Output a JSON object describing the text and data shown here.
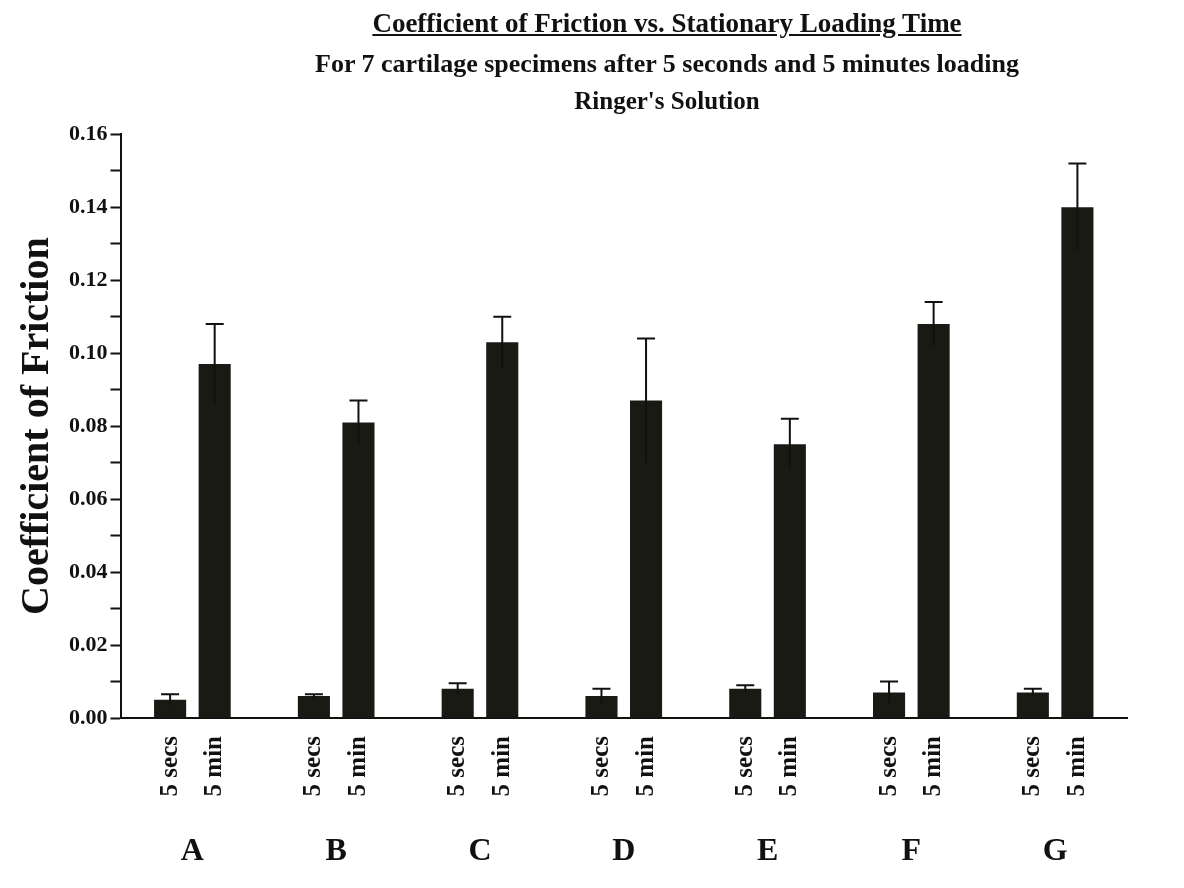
{
  "chart_data": {
    "type": "bar",
    "title": "Coefficient of Friction vs. Stationary Loading Time",
    "subtitle": "For 7 cartilage specimens after 5 seconds and 5 minutes loading",
    "annotations": [
      "Ringer's Solution"
    ],
    "ylabel": "Coefficient of Friction",
    "categories": [
      "A",
      "B",
      "C",
      "D",
      "E",
      "F",
      "G"
    ],
    "series": [
      {
        "name": "5 secs",
        "color": "#1a1a14",
        "values": [
          0.005,
          0.006,
          0.008,
          0.006,
          0.008,
          0.007,
          0.007
        ],
        "errors": [
          0.0015,
          0.0005,
          0.0015,
          0.002,
          0.001,
          0.003,
          0.001
        ]
      },
      {
        "name": "5 min",
        "color": "#1a1a14",
        "values": [
          0.097,
          0.081,
          0.103,
          0.087,
          0.075,
          0.108,
          0.14
        ],
        "errors": [
          0.011,
          0.006,
          0.007,
          0.017,
          0.007,
          0.006,
          0.012
        ]
      }
    ],
    "ylim": [
      0,
      0.16
    ],
    "yticks": [
      {
        "value": 0,
        "label": "0.00"
      },
      {
        "value": 0.01,
        "label": null
      },
      {
        "value": 0.02,
        "label": "0.02"
      },
      {
        "value": 0.03,
        "label": null
      },
      {
        "value": 0.04,
        "label": "0.04"
      },
      {
        "value": 0.05,
        "label": null
      },
      {
        "value": 0.06,
        "label": "0.06"
      },
      {
        "value": 0.07,
        "label": null
      },
      {
        "value": 0.08,
        "label": "0.08"
      },
      {
        "value": 0.09,
        "label": null
      },
      {
        "value": 0.1,
        "label": "0.10"
      },
      {
        "value": 0.11,
        "label": null
      },
      {
        "value": 0.12,
        "label": "0.12"
      },
      {
        "value": 0.13,
        "label": null
      },
      {
        "value": 0.14,
        "label": "0.14"
      },
      {
        "value": 0.15,
        "label": null
      },
      {
        "value": 0.16,
        "label": "0.16"
      }
    ],
    "grid": false,
    "legend": false
  }
}
